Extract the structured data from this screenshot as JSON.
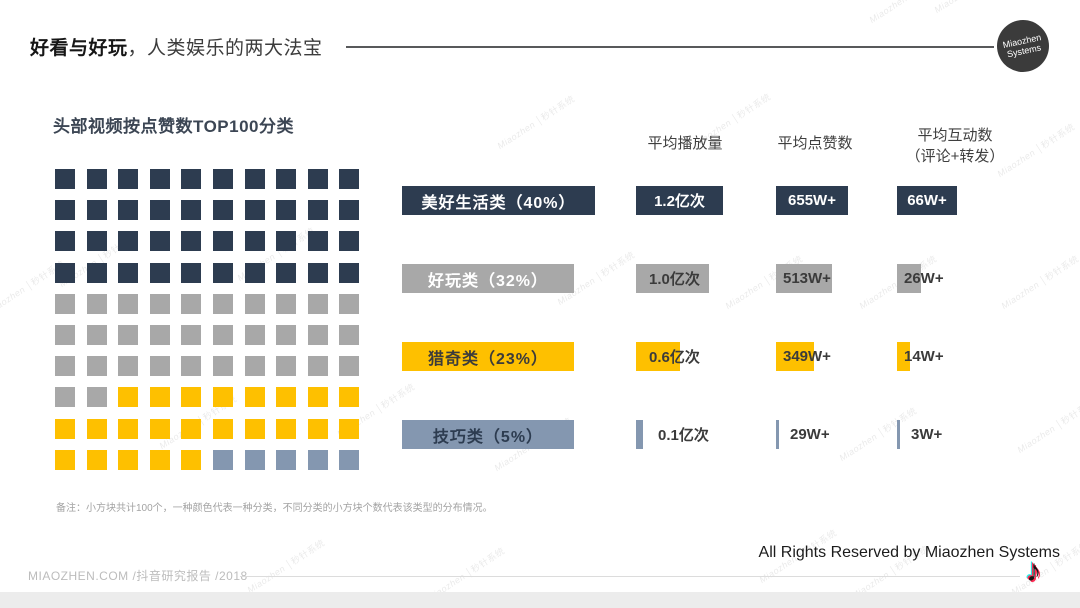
{
  "header": {
    "title_bold": "好看与好玩",
    "title_rest": "，人类娱乐的两大法宝",
    "logo_line1": "Miaozhen",
    "logo_line2": "Systems"
  },
  "chart": {
    "subtitle": "头部视频按点赞数TOP100分类",
    "note": "备注：小方块共计100个，一种颜色代表一种分类，不同分类的小方块个数代表该类型的分布情况。"
  },
  "chart_data": {
    "type": "waffle",
    "title": "头部视频按点赞数TOP100分类",
    "total_squares": 100,
    "legend_position": "right-row-labels",
    "categories": [
      {
        "name": "美好生活类",
        "label": "美好生活类（40%）",
        "pct": 40,
        "color": "#2d3c50",
        "label_color": "#ffffff"
      },
      {
        "name": "好玩类",
        "label": "好玩类（32%）",
        "pct": 32,
        "color": "#a8a8a8",
        "label_color": "#ffffff"
      },
      {
        "name": "猎奇类",
        "label": "猎奇类（23%）",
        "pct": 23,
        "color": "#fec000",
        "label_color": "#3b3b3b"
      },
      {
        "name": "技巧类",
        "label": "技巧类（5%）",
        "pct": 5,
        "color": "#8497b0",
        "label_color": "#2d3c50"
      }
    ],
    "series": [
      {
        "name": "平均播放量",
        "name2": "",
        "values": [
          "1.2亿次",
          "1.0亿次",
          "0.6亿次",
          "0.1亿次"
        ],
        "nums": [
          1.2,
          1.0,
          0.6,
          0.1
        ]
      },
      {
        "name": "平均点赞数",
        "name2": "",
        "values": [
          "655W+",
          "513W+",
          "349W+",
          "29W+"
        ],
        "nums": [
          655,
          513,
          349,
          29
        ]
      },
      {
        "name": "平均互动数",
        "name2": "（评论+转发）",
        "values": [
          "66W+",
          "26W+",
          "14W+",
          "3W+"
        ],
        "nums": [
          66,
          26,
          14,
          3
        ]
      }
    ]
  },
  "footer": {
    "left": "MIAOZHEN.COM /抖音研究报告 /2018",
    "copyright": "All Rights Reserved by Miaozhen Systems",
    "tiktok_icon": "♪"
  },
  "watermark": {
    "brand": "Miaozhen",
    "cn": "秒针系统"
  }
}
